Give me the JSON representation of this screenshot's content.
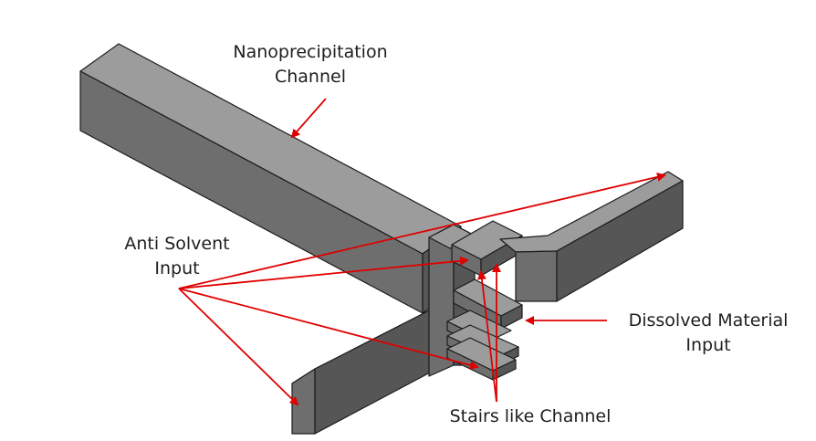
{
  "labels": {
    "nanoprecipitation": {
      "line1": "Nanoprecipitation",
      "line2": "Channel"
    },
    "anti_solvent": {
      "line1": "Anti Solvent",
      "line2": "Input"
    },
    "dissolved": {
      "line1": "Dissolved Material",
      "line2": "Input"
    },
    "stairs": {
      "line1": "Stairs like Channel"
    }
  },
  "colors": {
    "arrow": "#e00000",
    "block_top": "#9c9c9c",
    "block_front": "#6e6e6e",
    "block_side": "#565656",
    "outline": "#1c1c1c"
  }
}
